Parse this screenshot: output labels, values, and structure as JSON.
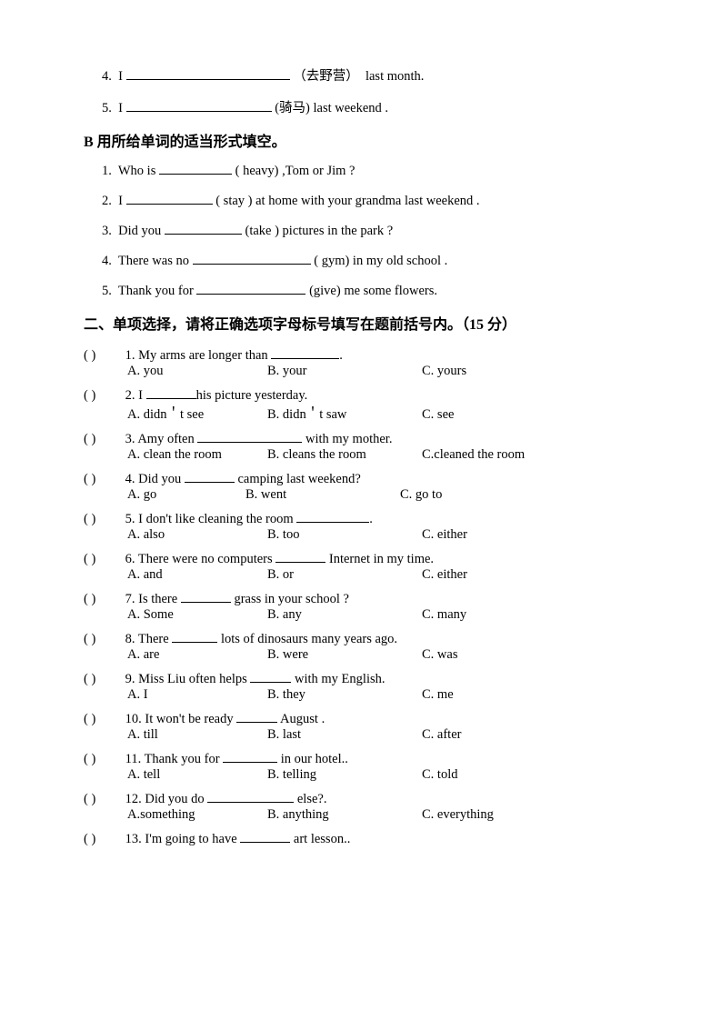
{
  "topA": {
    "q4": {
      "num": "4.",
      "pre": "I",
      "hint": "（去野营）",
      "post": "last month.",
      "blank_w": 180
    },
    "q5": {
      "num": "5.",
      "pre": "I",
      "hint": "(骑马)",
      "post": "last weekend .",
      "blank_w": 160
    }
  },
  "sectionB": {
    "title": "B 用所给单词的适当形式填空。",
    "q1": {
      "num": "1.",
      "pre": "Who is",
      "hint": "( heavy) ,Tom or Jim ?",
      "blank_w": 80
    },
    "q2": {
      "num": "2.",
      "pre": "I",
      "hint": "( stay ) at home with your grandma last weekend .",
      "blank_w": 95
    },
    "q3": {
      "num": "3.",
      "pre": "Did you",
      "hint": "(take ) pictures in the park ?",
      "blank_w": 85
    },
    "q4": {
      "num": "4.",
      "pre": "There was no",
      "hint": "( gym) in my old school .",
      "blank_w": 130
    },
    "q5": {
      "num": "5.",
      "pre": "Thank you for",
      "hint": "(give) me some flowers.",
      "blank_w": 120
    }
  },
  "section2": {
    "title": "二、单项选择，请将正确选项字母标号填写在题前括号内。（15 分）",
    "items": [
      {
        "n": "1.",
        "stem_pre": "My arms are longer than ",
        "stem_post": ".",
        "bw": 75,
        "a": "A. you",
        "b": "B. your",
        "c": "C. yours"
      },
      {
        "n": "2.",
        "stem_pre": "I ",
        "stem_post": "his picture yesterday.",
        "bw": 55,
        "a": "A. didn＇t see",
        "b": "B. didn＇t saw",
        "c": "C. see"
      },
      {
        "n": "3.",
        "stem_pre": "Amy often ",
        "stem_post": " with my mother.",
        "bw": 115,
        "a": "A. clean the room",
        "b": "B. cleans the room",
        "c": "C.cleaned the room"
      },
      {
        "n": "4.",
        "stem_pre": "Did you ",
        "stem_post": " camping last weekend?",
        "bw": 55,
        "a": "A. go",
        "b": "B. went",
        "c": "C. go to"
      },
      {
        "n": "5.",
        "stem_pre": "I don't like cleaning the room ",
        "stem_post": ".",
        "bw": 80,
        "a": "A. also",
        "b": "B. too",
        "c": "C. either"
      },
      {
        "n": "6.",
        "stem_pre": "There were no computers ",
        "stem_post": " Internet in my time.",
        "bw": 55,
        "a": "A. and",
        "b": "B. or",
        "c": "C. either"
      },
      {
        "n": "7.",
        "stem_pre": "Is there ",
        "stem_post": " grass in your school ?",
        "bw": 55,
        "a": "A. Some",
        "b": "B. any",
        "c": "C. many"
      },
      {
        "n": "8.",
        "stem_pre": "There ",
        "stem_post": " lots of dinosaurs many years ago.",
        "bw": 50,
        "a": "A. are",
        "b": "B. were",
        "c": "C. was"
      },
      {
        "n": "9.",
        "stem_pre": "Miss Liu often helps ",
        "stem_post": " with my English.",
        "bw": 45,
        "a": "A. I",
        "b": "B. they",
        "c": "C. me"
      },
      {
        "n": "10.",
        "stem_pre": "It won't be ready ",
        "stem_post": " August .",
        "bw": 45,
        "a": "A.   till",
        "b": "B. last",
        "c": "C. after"
      },
      {
        "n": "11.",
        "stem_pre": "Thank you for ",
        "stem_post": " in our hotel..",
        "bw": 60,
        "a": "A. tell",
        "b": "B. telling",
        "c": "C. told"
      },
      {
        "n": "12.",
        "stem_pre": "Did you do ",
        "stem_post": " else?.",
        "bw": 95,
        "a": "A.something",
        "b": "B. anything",
        "c": "C. everything"
      },
      {
        "n": "13.",
        "stem_pre": "I'm going to have ",
        "stem_post": " art lesson..",
        "bw": 55,
        "a": "",
        "b": "",
        "c": ""
      }
    ]
  },
  "paren_text": "(      )"
}
